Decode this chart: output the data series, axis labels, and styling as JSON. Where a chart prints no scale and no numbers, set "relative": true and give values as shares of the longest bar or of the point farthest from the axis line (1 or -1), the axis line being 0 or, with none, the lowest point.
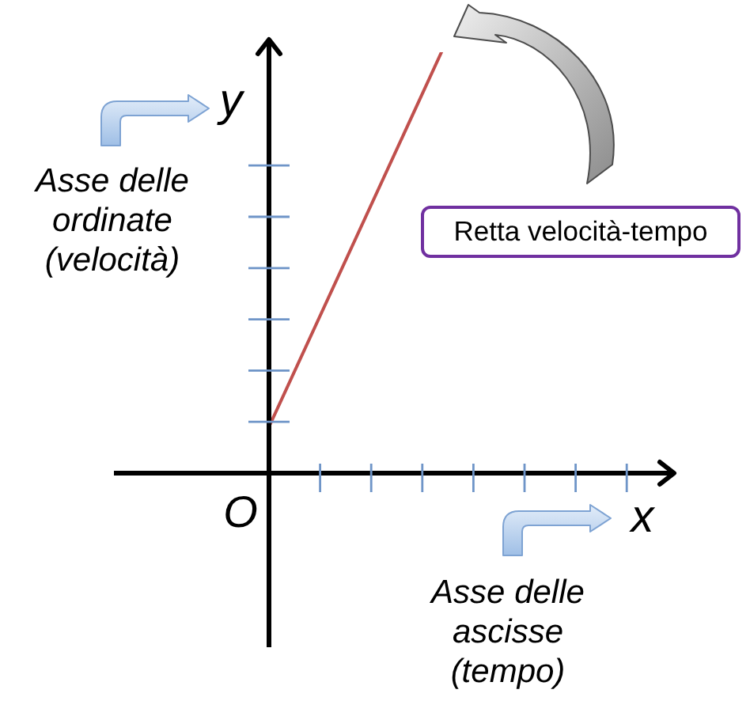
{
  "chart_data": {
    "type": "line",
    "relative": true,
    "categories": [
      null,
      null
    ],
    "xlabel": "x",
    "ylabel": "y",
    "series": [
      {
        "color": "#c0504d",
        "values": [
          0.11,
          1
        ]
      }
    ],
    "annotations": [
      "O",
      "Asse delle ordinate (velocità)",
      "Asse delle ascisse (tempo)",
      "Retta velocità-tempo"
    ]
  }
}
